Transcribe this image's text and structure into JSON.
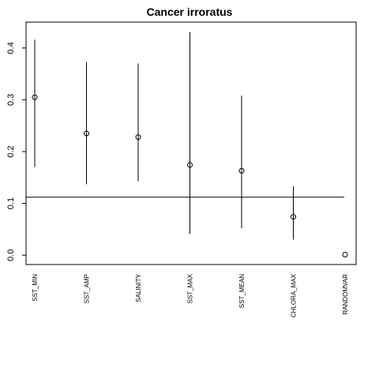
{
  "chart_data": {
    "type": "scatter",
    "title": "Cancer irroratus",
    "xlabel": "",
    "ylabel": "",
    "categories": [
      "SST_MIN",
      "SST_AMP",
      "SALINITY",
      "SST_MAX",
      "SST_MEAN",
      "CHLORA_MAX",
      "RANDOMVAR"
    ],
    "values": [
      0.305,
      0.235,
      0.228,
      0.174,
      0.163,
      0.074,
      0.001
    ],
    "lower": [
      0.17,
      0.137,
      0.143,
      0.041,
      0.052,
      0.03,
      null
    ],
    "upper": [
      0.416,
      0.373,
      0.37,
      0.431,
      0.308,
      0.133,
      null
    ],
    "reference_line": 0.112,
    "ylim": [
      -0.018,
      0.45
    ],
    "yticks": [
      0.0,
      0.1,
      0.2,
      0.3,
      0.4
    ],
    "ytick_labels": [
      "0.0",
      "0.1",
      "0.2",
      "0.3",
      "0.4"
    ],
    "grid": false,
    "legend": "none"
  }
}
